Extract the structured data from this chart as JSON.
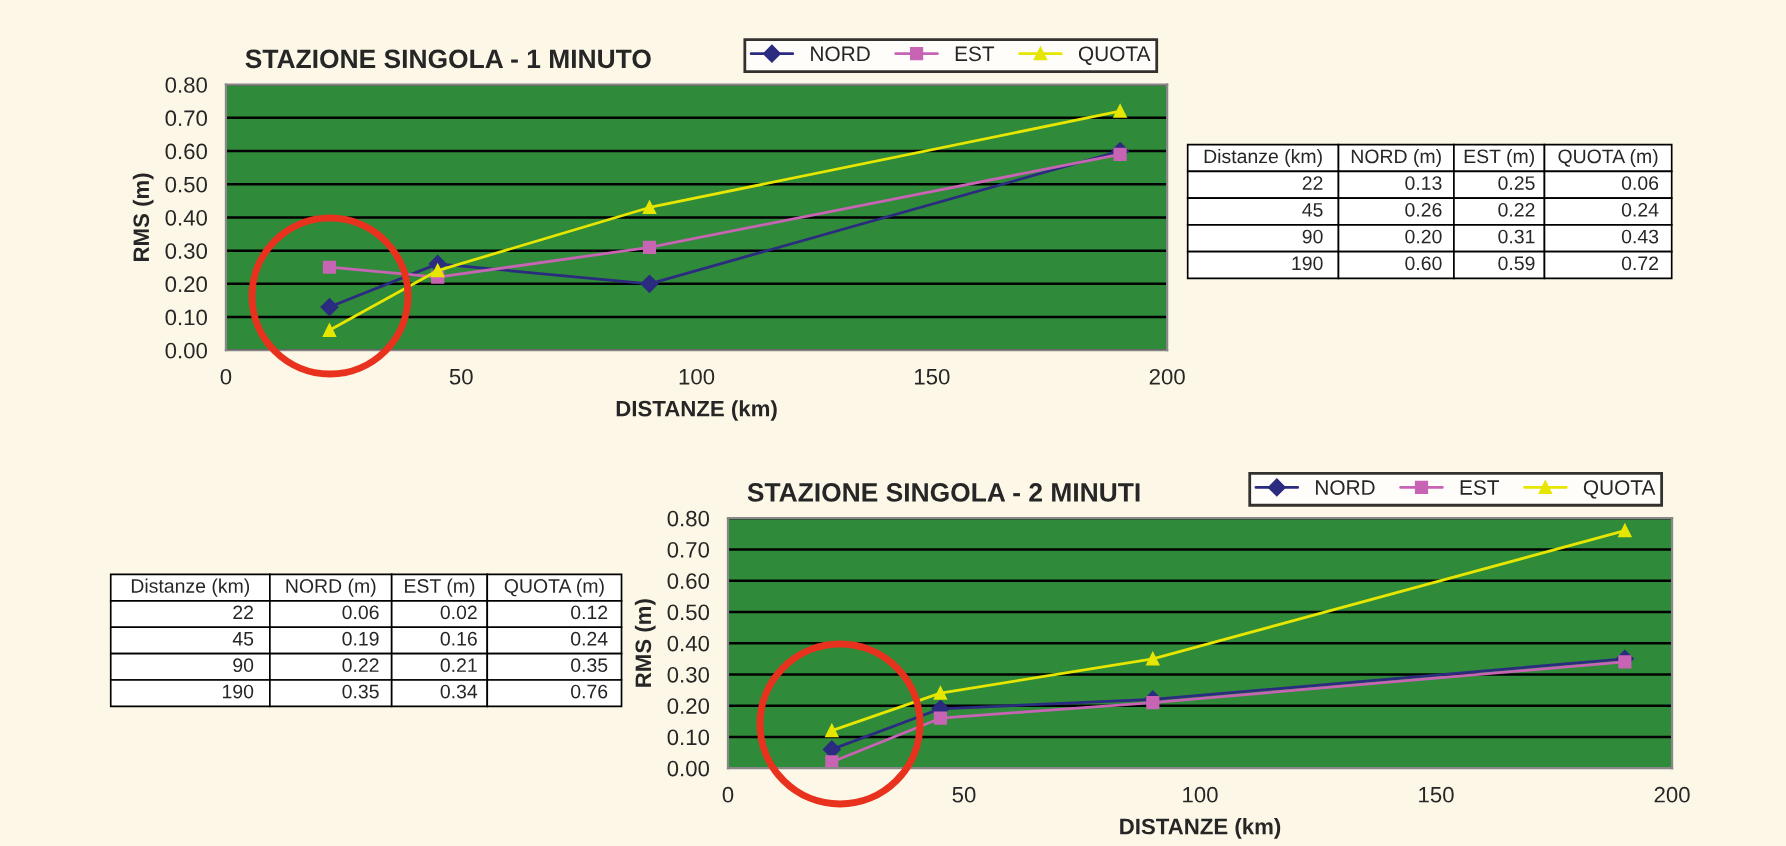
{
  "chart_data": [
    {
      "type": "line",
      "title": "STAZIONE SINGOLA - 1 MINUTO",
      "xlabel": "DISTANZE (km)",
      "ylabel": "RMS (m)",
      "x": [
        22,
        45,
        90,
        190
      ],
      "series": [
        {
          "name": "NORD",
          "color": "#2b2b80",
          "marker": "diamond",
          "values": [
            0.13,
            0.26,
            0.2,
            0.6
          ]
        },
        {
          "name": "EST",
          "color": "#c864b4",
          "marker": "square",
          "values": [
            0.25,
            0.22,
            0.31,
            0.59
          ]
        },
        {
          "name": "QUOTA",
          "color": "#e6e600",
          "marker": "triangle",
          "values": [
            0.06,
            0.24,
            0.43,
            0.72
          ]
        }
      ],
      "xlim": [
        0,
        200
      ],
      "xticks": [
        0,
        50,
        100,
        150,
        200
      ],
      "ylim": [
        0,
        0.8
      ],
      "yticks": [
        {
          "value": 0,
          "label": "0.00"
        },
        {
          "value": 0.1,
          "label": "0.10"
        },
        {
          "value": 0.2,
          "label": "0.20"
        },
        {
          "value": 0.3,
          "label": "0.30"
        },
        {
          "value": 0.4,
          "label": "0.40"
        },
        {
          "value": 0.5,
          "label": "0.50"
        },
        {
          "value": 0.6,
          "label": "0.60"
        },
        {
          "value": 0.7,
          "label": "0.70"
        },
        {
          "value": 0.8,
          "label": "0.80"
        }
      ],
      "grid": "y",
      "legend": "top right",
      "line_style": "solid",
      "annotations": [
        "Distanze (km)",
        "NORD (m)",
        "EST (m)",
        "QUOTA (m)",
        "22",
        "0.13",
        "0.25",
        "0.06",
        "45",
        "0.26",
        "0.22",
        "0.24",
        "90",
        "0.20",
        "0.31",
        "0.43",
        "190",
        "0.60",
        "0.59",
        "0.72"
      ]
    },
    {
      "type": "line",
      "title": "STAZIONE SINGOLA - 2 MINUTI",
      "xlabel": "DISTANZE (km)",
      "ylabel": "RMS (m)",
      "x": [
        22,
        45,
        90,
        190
      ],
      "series": [
        {
          "name": "NORD",
          "color": "#2b2b80",
          "marker": "diamond",
          "values": [
            0.06,
            0.19,
            0.22,
            0.35
          ]
        },
        {
          "name": "EST",
          "color": "#c864b4",
          "marker": "square",
          "values": [
            0.02,
            0.16,
            0.21,
            0.34
          ]
        },
        {
          "name": "QUOTA",
          "color": "#e6e600",
          "marker": "triangle",
          "values": [
            0.12,
            0.24,
            0.35,
            0.76
          ]
        }
      ],
      "xlim": [
        0,
        200
      ],
      "xticks": [
        0,
        50,
        100,
        150,
        200
      ],
      "ylim": [
        0,
        0.8
      ],
      "yticks": [
        {
          "value": 0,
          "label": "0.00"
        },
        {
          "value": 0.1,
          "label": "0.10"
        },
        {
          "value": 0.2,
          "label": "0.20"
        },
        {
          "value": 0.3,
          "label": "0.30"
        },
        {
          "value": 0.4,
          "label": "0.40"
        },
        {
          "value": 0.5,
          "label": "0.50"
        },
        {
          "value": 0.6,
          "label": "0.60"
        },
        {
          "value": 0.7,
          "label": "0.70"
        },
        {
          "value": 0.8,
          "label": "0.80"
        }
      ],
      "grid": "y",
      "legend": "top right",
      "line_style": "solid",
      "annotations": [
        "Distanze (km)",
        "NORD (m)",
        "EST (m)",
        "QUOTA (m)",
        "22",
        "0.06",
        "0.02",
        "0.12",
        "45",
        "0.19",
        "0.16",
        "0.24",
        "90",
        "0.22",
        "0.21",
        "0.35",
        "190",
        "0.35",
        "0.34",
        "0.76"
      ]
    }
  ]
}
